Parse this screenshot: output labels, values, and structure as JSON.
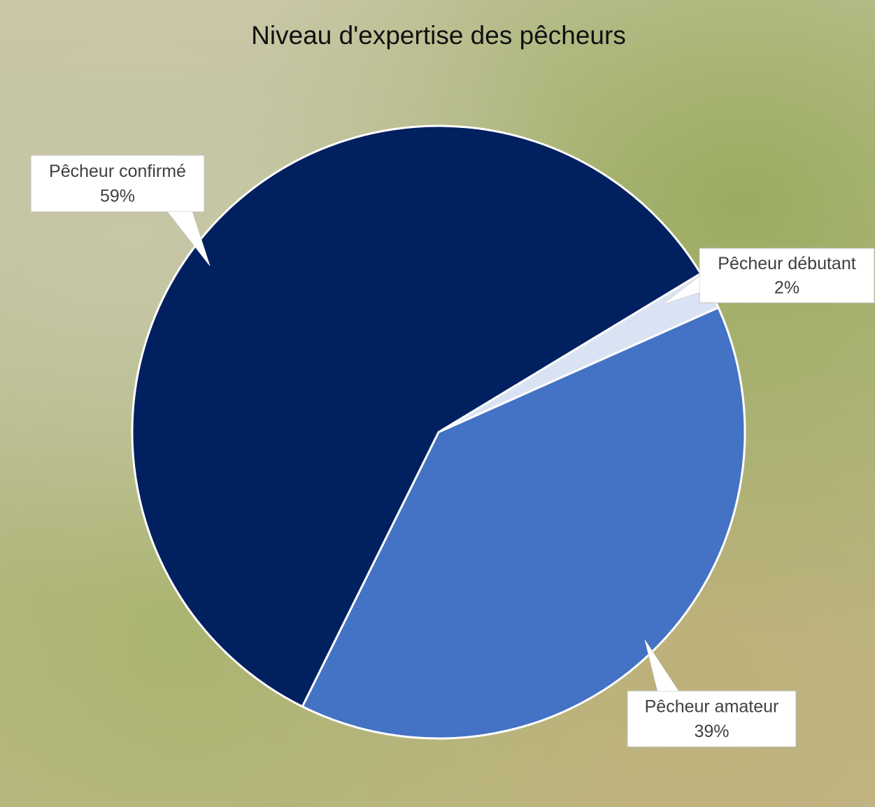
{
  "chart_data": {
    "type": "pie",
    "title": "Niveau d'expertise des pêcheurs",
    "categories": [
      "Pêcheur débutant",
      "Pêcheur amateur",
      "Pêcheur confirmé"
    ],
    "values": [
      2,
      39,
      59
    ],
    "value_labels": [
      "2%",
      "39%",
      "59%"
    ],
    "colors": [
      "#dae3f3",
      "#4472c4",
      "#002060"
    ]
  }
}
